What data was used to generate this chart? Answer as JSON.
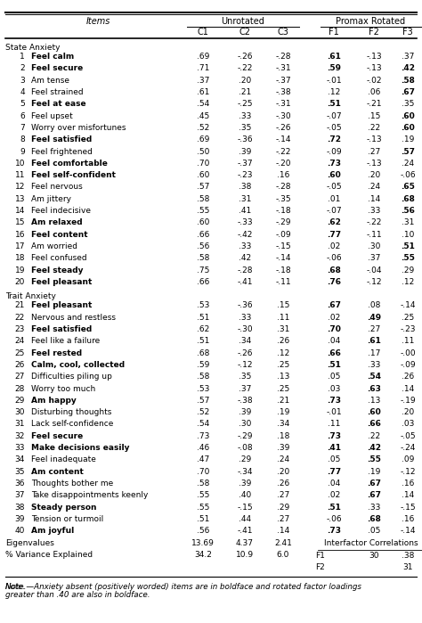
{
  "rows": [
    {
      "num": "1",
      "item": "Feel calm",
      "item_bold": true,
      "c1": ".69",
      "c2": "-.26",
      "c3": "-.28",
      "f1": ".61",
      "f2": "-.13",
      "f3": ".37",
      "f1b": true,
      "f2b": false,
      "f3b": false
    },
    {
      "num": "2",
      "item": "Feel secure",
      "item_bold": true,
      "c1": ".71",
      "c2": "-.22",
      "c3": "-.31",
      "f1": ".59",
      "f2": "-.13",
      "f3": ".42",
      "f1b": true,
      "f2b": false,
      "f3b": true
    },
    {
      "num": "3",
      "item": "Am tense",
      "item_bold": false,
      "c1": ".37",
      "c2": ".20",
      "c3": "-.37",
      "f1": "-.01",
      "f2": "-.02",
      "f3": ".58",
      "f1b": false,
      "f2b": false,
      "f3b": true
    },
    {
      "num": "4",
      "item": "Feel strained",
      "item_bold": false,
      "c1": ".61",
      "c2": ".21",
      "c3": "-.38",
      "f1": ".12",
      "f2": ".06",
      "f3": ".67",
      "f1b": false,
      "f2b": false,
      "f3b": true
    },
    {
      "num": "5",
      "item": "Feel at ease",
      "item_bold": true,
      "c1": ".54",
      "c2": "-.25",
      "c3": "-.31",
      "f1": ".51",
      "f2": "-.21",
      "f3": ".35",
      "f1b": true,
      "f2b": false,
      "f3b": false
    },
    {
      "num": "6",
      "item": "Feel upset",
      "item_bold": false,
      "c1": ".45",
      "c2": ".33",
      "c3": "-.30",
      "f1": "-.07",
      "f2": ".15",
      "f3": ".60",
      "f1b": false,
      "f2b": false,
      "f3b": true
    },
    {
      "num": "7",
      "item": "Worry over misfortunes",
      "item_bold": false,
      "c1": ".52",
      "c2": ".35",
      "c3": "-.26",
      "f1": "-.05",
      "f2": ".22",
      "f3": ".60",
      "f1b": false,
      "f2b": false,
      "f3b": true
    },
    {
      "num": "8",
      "item": "Feel satisfied",
      "item_bold": true,
      "c1": ".69",
      "c2": "-.36",
      "c3": "-.14",
      "f1": ".72",
      "f2": "-.13",
      "f3": ".19",
      "f1b": true,
      "f2b": false,
      "f3b": false
    },
    {
      "num": "9",
      "item": "Feel frightened",
      "item_bold": false,
      "c1": ".50",
      "c2": ".39",
      "c3": "-.22",
      "f1": "-.09",
      "f2": ".27",
      "f3": ".57",
      "f1b": false,
      "f2b": false,
      "f3b": true
    },
    {
      "num": "10",
      "item": "Feel comfortable",
      "item_bold": true,
      "c1": ".70",
      "c2": "-.37",
      "c3": "-.20",
      "f1": ".73",
      "f2": "-.13",
      "f3": ".24",
      "f1b": true,
      "f2b": false,
      "f3b": false
    },
    {
      "num": "11",
      "item": "Feel self-confident",
      "item_bold": true,
      "c1": ".60",
      "c2": "-.23",
      "c3": ".16",
      "f1": ".60",
      "f2": ".20",
      "f3": "-.06",
      "f1b": true,
      "f2b": false,
      "f3b": false
    },
    {
      "num": "12",
      "item": "Feel nervous",
      "item_bold": false,
      "c1": ".57",
      "c2": ".38",
      "c3": "-.28",
      "f1": "-.05",
      "f2": ".24",
      "f3": ".65",
      "f1b": false,
      "f2b": false,
      "f3b": true
    },
    {
      "num": "13",
      "item": "Am jittery",
      "item_bold": false,
      "c1": ".58",
      "c2": ".31",
      "c3": "-.35",
      "f1": ".01",
      "f2": ".14",
      "f3": ".68",
      "f1b": false,
      "f2b": false,
      "f3b": true
    },
    {
      "num": "14",
      "item": "Feel indecisive",
      "item_bold": false,
      "c1": ".55",
      "c2": ".41",
      "c3": "-.18",
      "f1": "-.07",
      "f2": ".33",
      "f3": ".56",
      "f1b": false,
      "f2b": false,
      "f3b": true
    },
    {
      "num": "15",
      "item": "Am relaxed",
      "item_bold": true,
      "c1": ".60",
      "c2": "-.33",
      "c3": "-.29",
      "f1": ".62",
      "f2": "-.22",
      "f3": ".31",
      "f1b": true,
      "f2b": false,
      "f3b": false
    },
    {
      "num": "16",
      "item": "Feel content",
      "item_bold": true,
      "c1": ".66",
      "c2": "-.42",
      "c3": "-.09",
      "f1": ".77",
      "f2": "-.11",
      "f3": ".10",
      "f1b": true,
      "f2b": false,
      "f3b": false
    },
    {
      "num": "17",
      "item": "Am worried",
      "item_bold": false,
      "c1": ".56",
      "c2": ".33",
      "c3": "-.15",
      "f1": ".02",
      "f2": ".30",
      "f3": ".51",
      "f1b": false,
      "f2b": false,
      "f3b": true
    },
    {
      "num": "18",
      "item": "Feel confused",
      "item_bold": false,
      "c1": ".58",
      "c2": ".42",
      "c3": "-.14",
      "f1": "-.06",
      "f2": ".37",
      "f3": ".55",
      "f1b": false,
      "f2b": false,
      "f3b": true
    },
    {
      "num": "19",
      "item": "Feel steady",
      "item_bold": true,
      "c1": ".75",
      "c2": "-.28",
      "c3": "-.18",
      "f1": ".68",
      "f2": "-.04",
      "f3": ".29",
      "f1b": true,
      "f2b": false,
      "f3b": false
    },
    {
      "num": "20",
      "item": "Feel pleasant",
      "item_bold": true,
      "c1": ".66",
      "c2": "-.41",
      "c3": "-.11",
      "f1": ".76",
      "f2": "-.12",
      "f3": ".12",
      "f1b": true,
      "f2b": false,
      "f3b": false
    },
    {
      "num": "21",
      "item": "Feel pleasant",
      "item_bold": true,
      "c1": ".53",
      "c2": "-.36",
      "c3": ".15",
      "f1": ".67",
      "f2": ".08",
      "f3": "-.14",
      "f1b": true,
      "f2b": false,
      "f3b": false
    },
    {
      "num": "22",
      "item": "Nervous and restless",
      "item_bold": false,
      "c1": ".51",
      "c2": ".33",
      "c3": ".11",
      "f1": ".02",
      "f2": ".49",
      "f3": ".25",
      "f1b": false,
      "f2b": true,
      "f3b": false
    },
    {
      "num": "23",
      "item": "Feel satisfied",
      "item_bold": true,
      "c1": ".62",
      "c2": "-.30",
      "c3": ".31",
      "f1": ".70",
      "f2": ".27",
      "f3": "-.23",
      "f1b": true,
      "f2b": false,
      "f3b": false
    },
    {
      "num": "24",
      "item": "Feel like a failure",
      "item_bold": false,
      "c1": ".51",
      "c2": ".34",
      "c3": ".26",
      "f1": ".04",
      "f2": ".61",
      "f3": ".11",
      "f1b": false,
      "f2b": true,
      "f3b": false
    },
    {
      "num": "25",
      "item": "Feel rested",
      "item_bold": true,
      "c1": ".68",
      "c2": "-.26",
      "c3": ".12",
      "f1": ".66",
      "f2": ".17",
      "f3": "-.00",
      "f1b": true,
      "f2b": false,
      "f3b": false
    },
    {
      "num": "26",
      "item": "Calm, cool, collected",
      "item_bold": true,
      "c1": ".59",
      "c2": "-.12",
      "c3": ".25",
      "f1": ".51",
      "f2": ".33",
      "f3": "-.09",
      "f1b": true,
      "f2b": false,
      "f3b": false
    },
    {
      "num": "27",
      "item": "Difficulties piling up",
      "item_bold": false,
      "c1": ".58",
      "c2": ".35",
      "c3": ".13",
      "f1": ".05",
      "f2": ".54",
      "f3": ".26",
      "f1b": false,
      "f2b": true,
      "f3b": false
    },
    {
      "num": "28",
      "item": "Worry too much",
      "item_bold": false,
      "c1": ".53",
      "c2": ".37",
      "c3": ".25",
      "f1": ".03",
      "f2": ".63",
      "f3": ".14",
      "f1b": false,
      "f2b": true,
      "f3b": false
    },
    {
      "num": "29",
      "item": "Am happy",
      "item_bold": true,
      "c1": ".57",
      "c2": "-.38",
      "c3": ".21",
      "f1": ".73",
      "f2": ".13",
      "f3": "-.19",
      "f1b": true,
      "f2b": false,
      "f3b": false
    },
    {
      "num": "30",
      "item": "Disturbing thoughts",
      "item_bold": false,
      "c1": ".52",
      "c2": ".39",
      "c3": ".19",
      "f1": "-.01",
      "f2": ".60",
      "f3": ".20",
      "f1b": false,
      "f2b": true,
      "f3b": false
    },
    {
      "num": "31",
      "item": "Lack self-confidence",
      "item_bold": false,
      "c1": ".54",
      "c2": ".30",
      "c3": ".34",
      "f1": ".11",
      "f2": ".66",
      "f3": ".03",
      "f1b": false,
      "f2b": true,
      "f3b": false
    },
    {
      "num": "32",
      "item": "Feel secure",
      "item_bold": true,
      "c1": ".73",
      "c2": "-.29",
      "c3": ".18",
      "f1": ".73",
      "f2": ".22",
      "f3": "-.05",
      "f1b": true,
      "f2b": false,
      "f3b": false
    },
    {
      "num": "33",
      "item": "Make decisions easily",
      "item_bold": true,
      "c1": ".46",
      "c2": "-.08",
      "c3": ".39",
      "f1": ".41",
      "f2": ".42",
      "f3": "-.24",
      "f1b": true,
      "f2b": true,
      "f3b": false
    },
    {
      "num": "34",
      "item": "Feel inadequate",
      "item_bold": false,
      "c1": ".47",
      "c2": ".29",
      "c3": ".24",
      "f1": ".05",
      "f2": ".55",
      "f3": ".09",
      "f1b": false,
      "f2b": true,
      "f3b": false
    },
    {
      "num": "35",
      "item": "Am content",
      "item_bold": true,
      "c1": ".70",
      "c2": "-.34",
      "c3": ".20",
      "f1": ".77",
      "f2": ".19",
      "f3": "-.12",
      "f1b": true,
      "f2b": false,
      "f3b": false
    },
    {
      "num": "36",
      "item": "Thoughts bother me",
      "item_bold": false,
      "c1": ".58",
      "c2": ".39",
      "c3": ".26",
      "f1": ".04",
      "f2": ".67",
      "f3": ".16",
      "f1b": false,
      "f2b": true,
      "f3b": false
    },
    {
      "num": "37",
      "item": "Take disappointments keenly",
      "item_bold": false,
      "c1": ".55",
      "c2": ".40",
      "c3": ".27",
      "f1": ".02",
      "f2": ".67",
      "f3": ".14",
      "f1b": false,
      "f2b": true,
      "f3b": false
    },
    {
      "num": "38",
      "item": "Steady person",
      "item_bold": true,
      "c1": ".55",
      "c2": "-.15",
      "c3": ".29",
      "f1": ".51",
      "f2": ".33",
      "f3": "-.15",
      "f1b": true,
      "f2b": false,
      "f3b": false
    },
    {
      "num": "39",
      "item": "Tension or turmoil",
      "item_bold": false,
      "c1": ".51",
      "c2": ".44",
      "c3": ".27",
      "f1": "-.06",
      "f2": ".68",
      "f3": ".16",
      "f1b": false,
      "f2b": true,
      "f3b": false
    },
    {
      "num": "40",
      "item": "Am joyful",
      "item_bold": true,
      "c1": ".56",
      "c2": "-.41",
      "c3": ".14",
      "f1": ".73",
      "f2": ".05",
      "f3": "-.14",
      "f1b": true,
      "f2b": false,
      "f3b": false
    }
  ],
  "eigenvalues": {
    "c1": "13.69",
    "c2": "4.37",
    "c3": "2.41"
  },
  "variance": {
    "c1": "34.2",
    "c2": "10.9",
    "c3": "6.0"
  },
  "interfactor": {
    "f1_f2": "30",
    "f1_f3": ".38",
    "f2_f3": "31"
  },
  "note_italic": "Note.",
  "note_dash": "—",
  "note_rest": "Anxiety absent (positively worded) items are in boldface and rotated factor loadings greater than .40 are also in boldface."
}
